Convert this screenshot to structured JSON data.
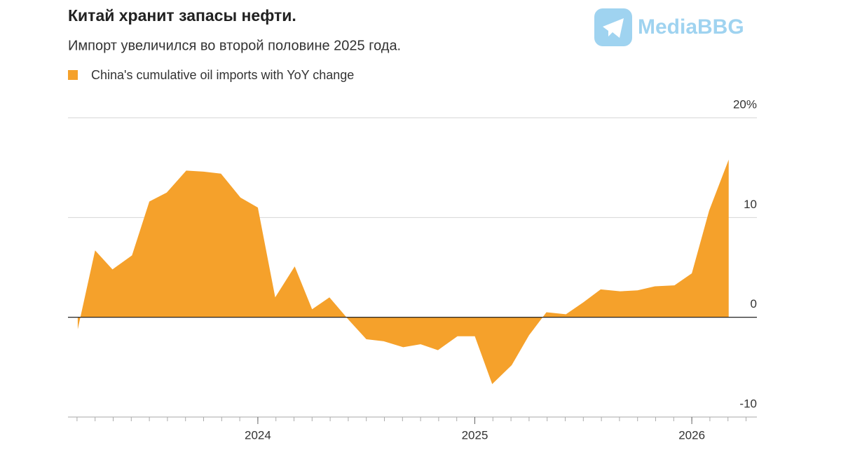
{
  "watermark": "MediaBBG",
  "chart_data": {
    "type": "area",
    "title": "Китай хранит запасы нефти.",
    "subtitle": "Импорт увеличился во второй половине 2025 года.",
    "x": [
      2023.17,
      2023.25,
      2023.33,
      2023.42,
      2023.5,
      2023.58,
      2023.67,
      2023.75,
      2023.83,
      2023.92,
      2024,
      2024.08,
      2024.17,
      2024.25,
      2024.33,
      2024.42,
      2024.5,
      2024.58,
      2024.67,
      2024.75,
      2024.83,
      2024.92,
      2025,
      2025.08,
      2025.17,
      2025.25,
      2025.33,
      2025.42,
      2025.5,
      2025.58,
      2025.67,
      2025.75,
      2025.83,
      2025.92,
      2026,
      2026.08,
      2026.17
    ],
    "series": [
      {
        "name": "China's cumulative oil imports with YoY change",
        "color": "#f5a12b",
        "values": [
          -1.2,
          6.7,
          4.8,
          6.2,
          11.6,
          12.5,
          14.7,
          14.6,
          14.4,
          12.0,
          11.0,
          2.0,
          5.1,
          0.8,
          2.0,
          -0.3,
          -2.2,
          -2.4,
          -3.0,
          -2.7,
          -3.3,
          -1.9,
          -1.9,
          -6.7,
          -4.8,
          -1.8,
          0.5,
          0.3,
          1.5,
          2.8,
          2.6,
          2.7,
          3.1,
          3.2,
          4.4,
          10.7,
          15.8
        ]
      }
    ],
    "xlim": [
      2023.125,
      2026.3
    ],
    "xticks": [
      2024,
      2025,
      2026
    ],
    "ylim": [
      -10,
      20
    ],
    "yticks": [
      -10,
      0,
      10,
      {
        "value": 20,
        "label": "20%"
      }
    ],
    "grid": true
  }
}
